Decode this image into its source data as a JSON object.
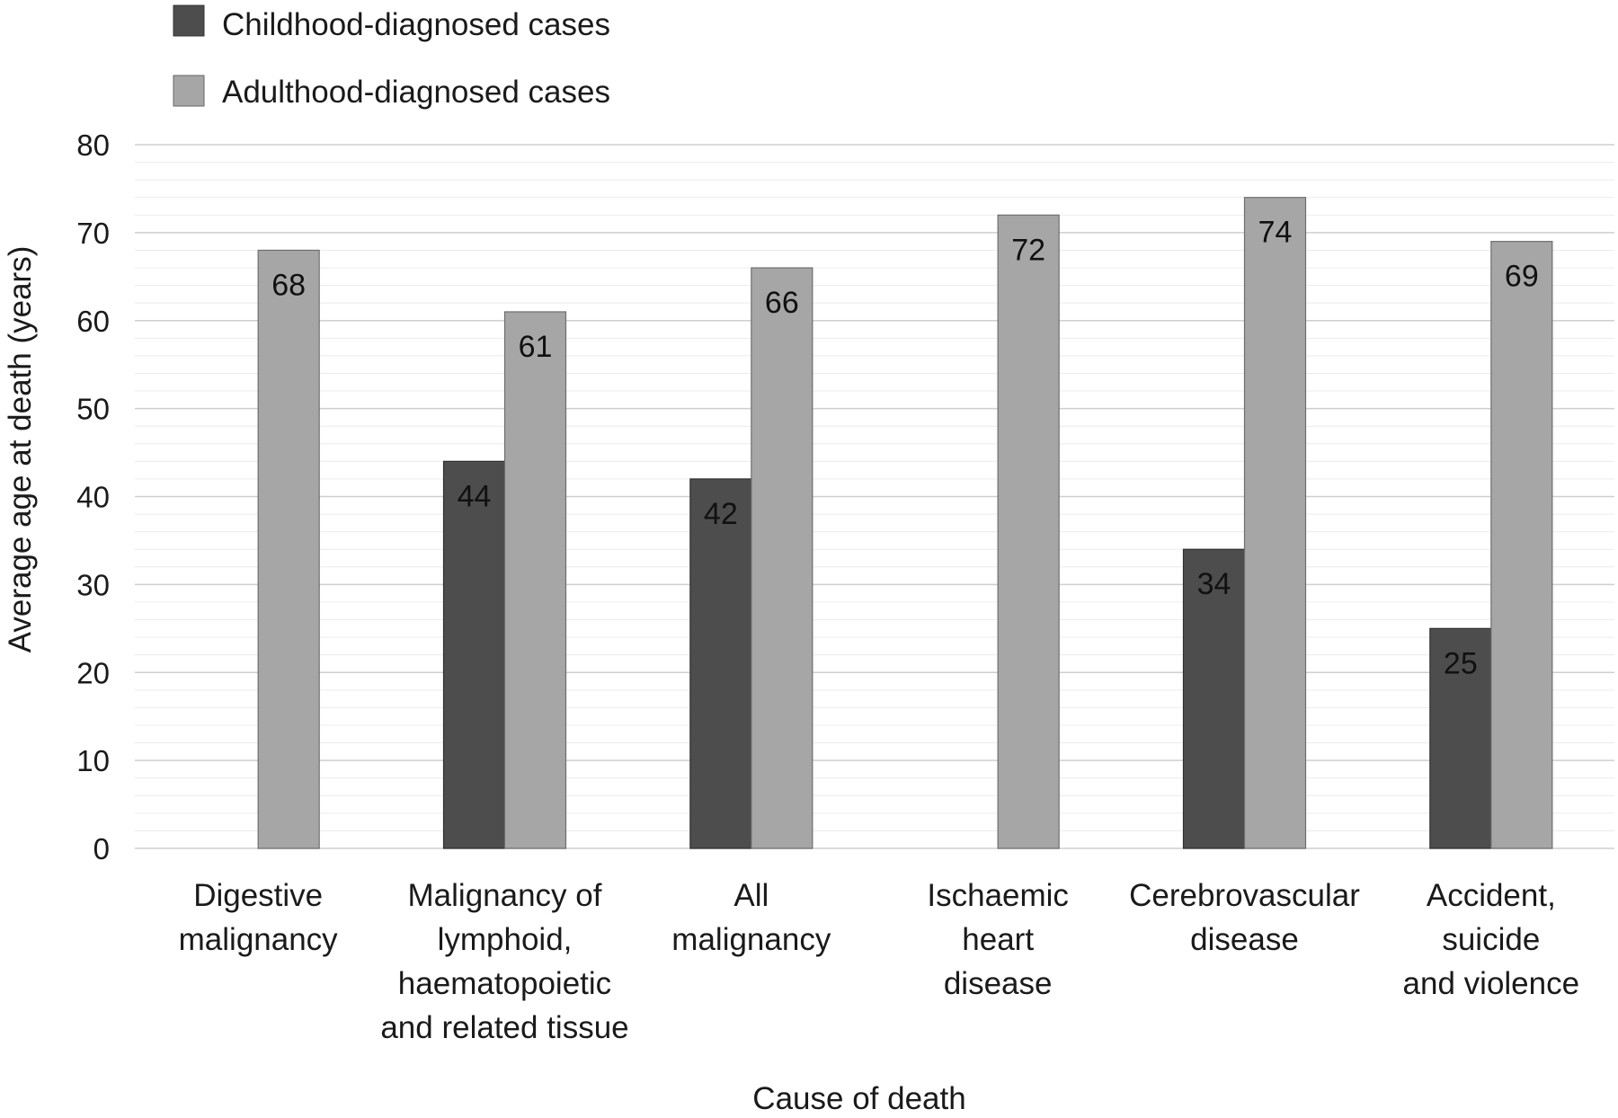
{
  "chart_data": {
    "type": "bar",
    "categories": [
      [
        "Digestive",
        "malignancy"
      ],
      [
        "Malignancy of",
        "lymphoid,",
        "haematopoietic",
        "and related tissue"
      ],
      [
        "All",
        "malignancy"
      ],
      [
        "Ischaemic",
        "heart",
        "disease"
      ],
      [
        "Cerebrovascular",
        "disease"
      ],
      [
        "Accident,",
        "suicide",
        "and violence"
      ]
    ],
    "series": [
      {
        "name": "Childhood-diagnosed cases",
        "color": "#4d4d4d",
        "values": [
          null,
          44,
          42,
          null,
          34,
          25
        ]
      },
      {
        "name": "Adulthood-diagnosed cases",
        "color": "#a6a6a6",
        "values": [
          68,
          61,
          66,
          72,
          74,
          69
        ]
      }
    ],
    "xlabel": "Cause of death",
    "ylabel": "Average age at death (years)",
    "ylim": [
      0,
      80
    ],
    "yticks": [
      0,
      10,
      20,
      30,
      40,
      50,
      60,
      70,
      80
    ],
    "grid": true,
    "legend_position": "top-left"
  }
}
